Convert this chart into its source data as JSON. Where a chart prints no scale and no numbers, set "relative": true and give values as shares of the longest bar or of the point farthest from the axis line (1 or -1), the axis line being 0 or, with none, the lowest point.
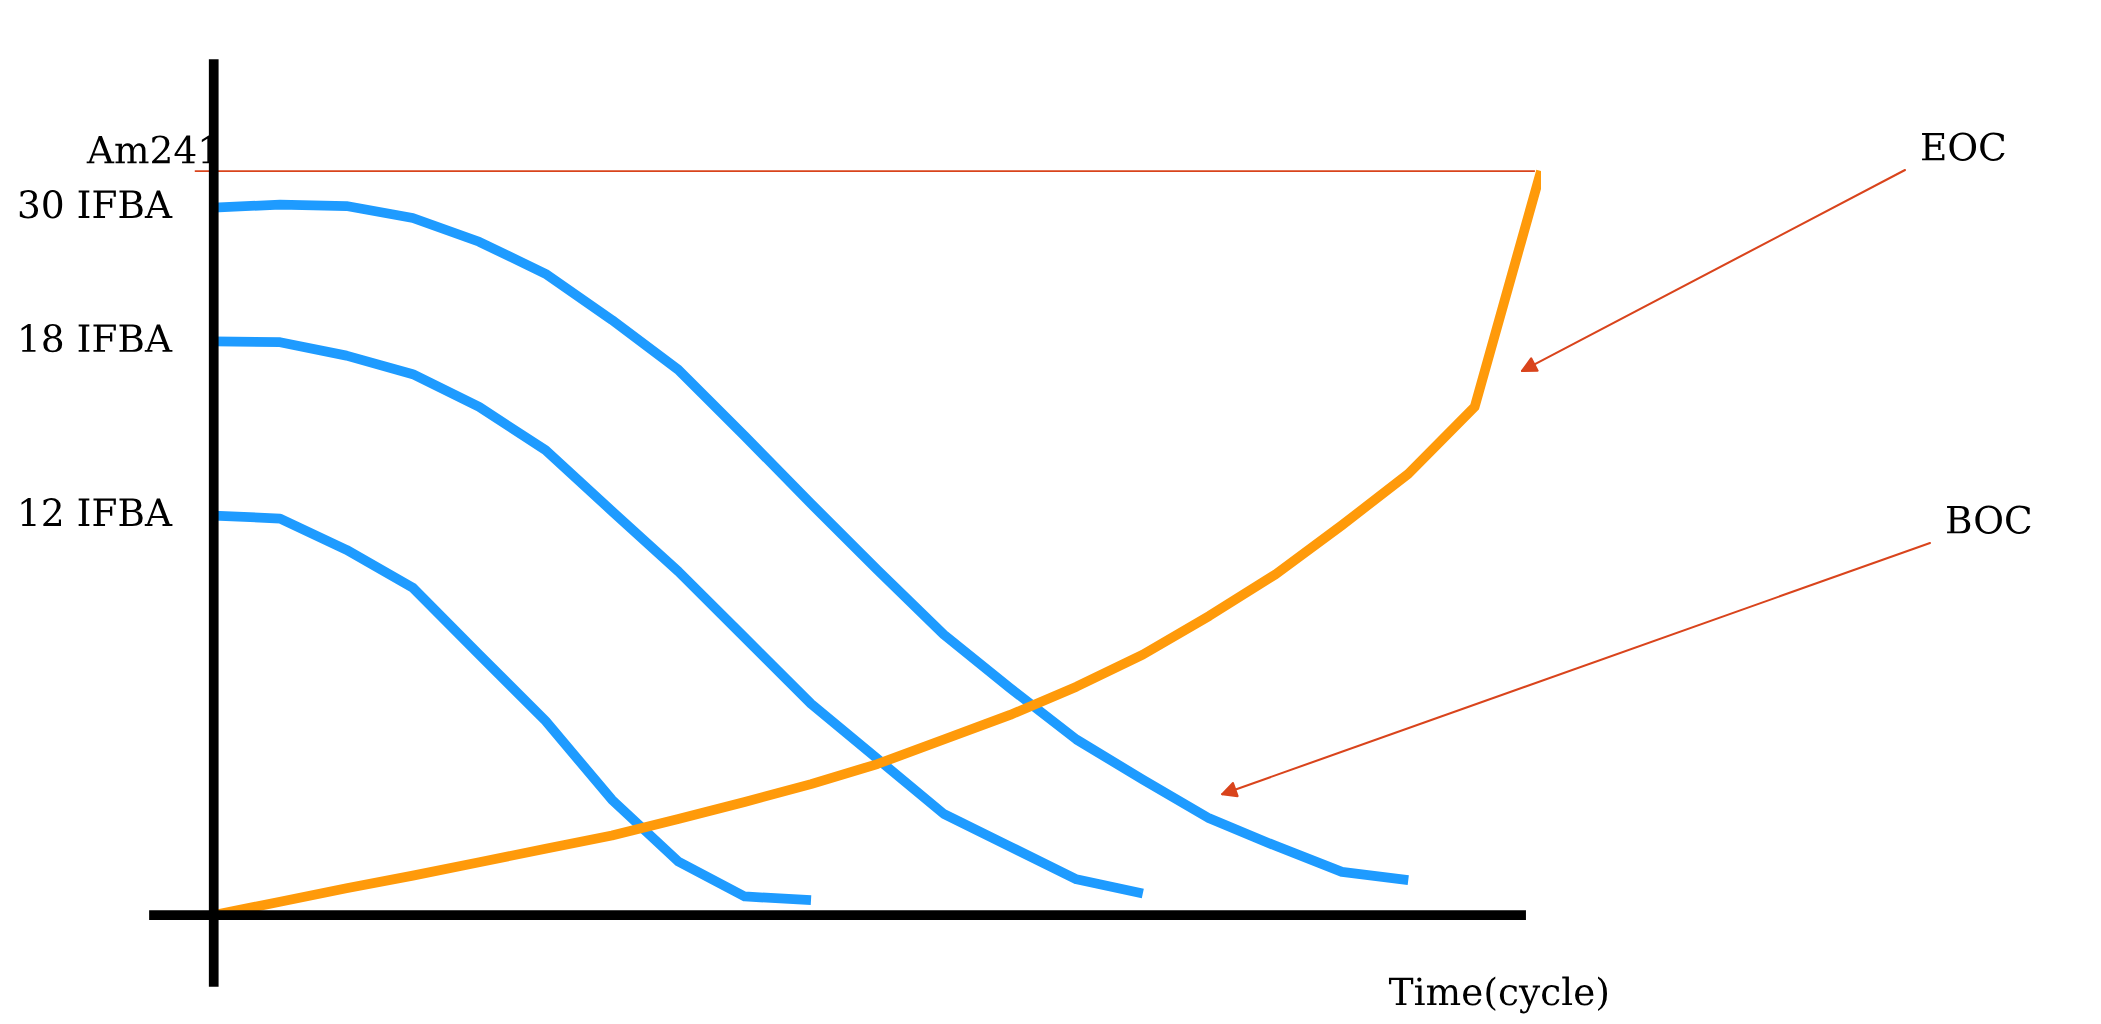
{
  "chart_data": {
    "type": "line",
    "relative": true,
    "xlabel": "Time(cycle)",
    "ylabel": "Am241",
    "marker": "none",
    "line_style": "solid",
    "categories": [
      null,
      null,
      null,
      null,
      null,
      null,
      null,
      null,
      null,
      null,
      null,
      null,
      null,
      null,
      null,
      null,
      null,
      null,
      null,
      null,
      null
    ],
    "series": [
      {
        "name": "30 IFBA",
        "color": "#1e9bff",
        "values": [
          0.951,
          0.955,
          0.953,
          0.937,
          0.905,
          0.862,
          0.8,
          0.733,
          0.644,
          0.553,
          0.464,
          0.377,
          0.305,
          0.236,
          0.182,
          0.13,
          0.093,
          0.058,
          0.047,
          null,
          null
        ]
      },
      {
        "name": "18 IFBA",
        "color": "#1e9bff",
        "values": [
          0.771,
          0.77,
          0.752,
          0.727,
          0.683,
          0.625,
          0.543,
          0.462,
          0.373,
          0.284,
          0.21,
          0.136,
          0.092,
          0.048,
          0.029,
          null,
          null,
          null,
          null,
          null,
          null
        ]
      },
      {
        "name": "12 IFBA",
        "color": "#1e9bff",
        "values": [
          0.537,
          0.533,
          0.491,
          0.44,
          0.35,
          0.261,
          0.155,
          0.072,
          0.025,
          0.02,
          null,
          null,
          null,
          null,
          null,
          null,
          null,
          null,
          null,
          null,
          null
        ]
      },
      {
        "color": "#ff9a0a",
        "values": [
          0,
          0.018,
          0.036,
          0.053,
          0.071,
          0.089,
          0.107,
          0.129,
          0.152,
          0.176,
          0.203,
          0.236,
          0.269,
          0.307,
          0.35,
          0.402,
          0.458,
          0.524,
          0.593,
          0.683,
          1.0
        ]
      }
    ],
    "ref_lines": [
      {
        "axis": "y",
        "value": 1.0,
        "color": "#d9441c"
      }
    ],
    "annotations": [
      "EOC",
      "BOC"
    ]
  }
}
